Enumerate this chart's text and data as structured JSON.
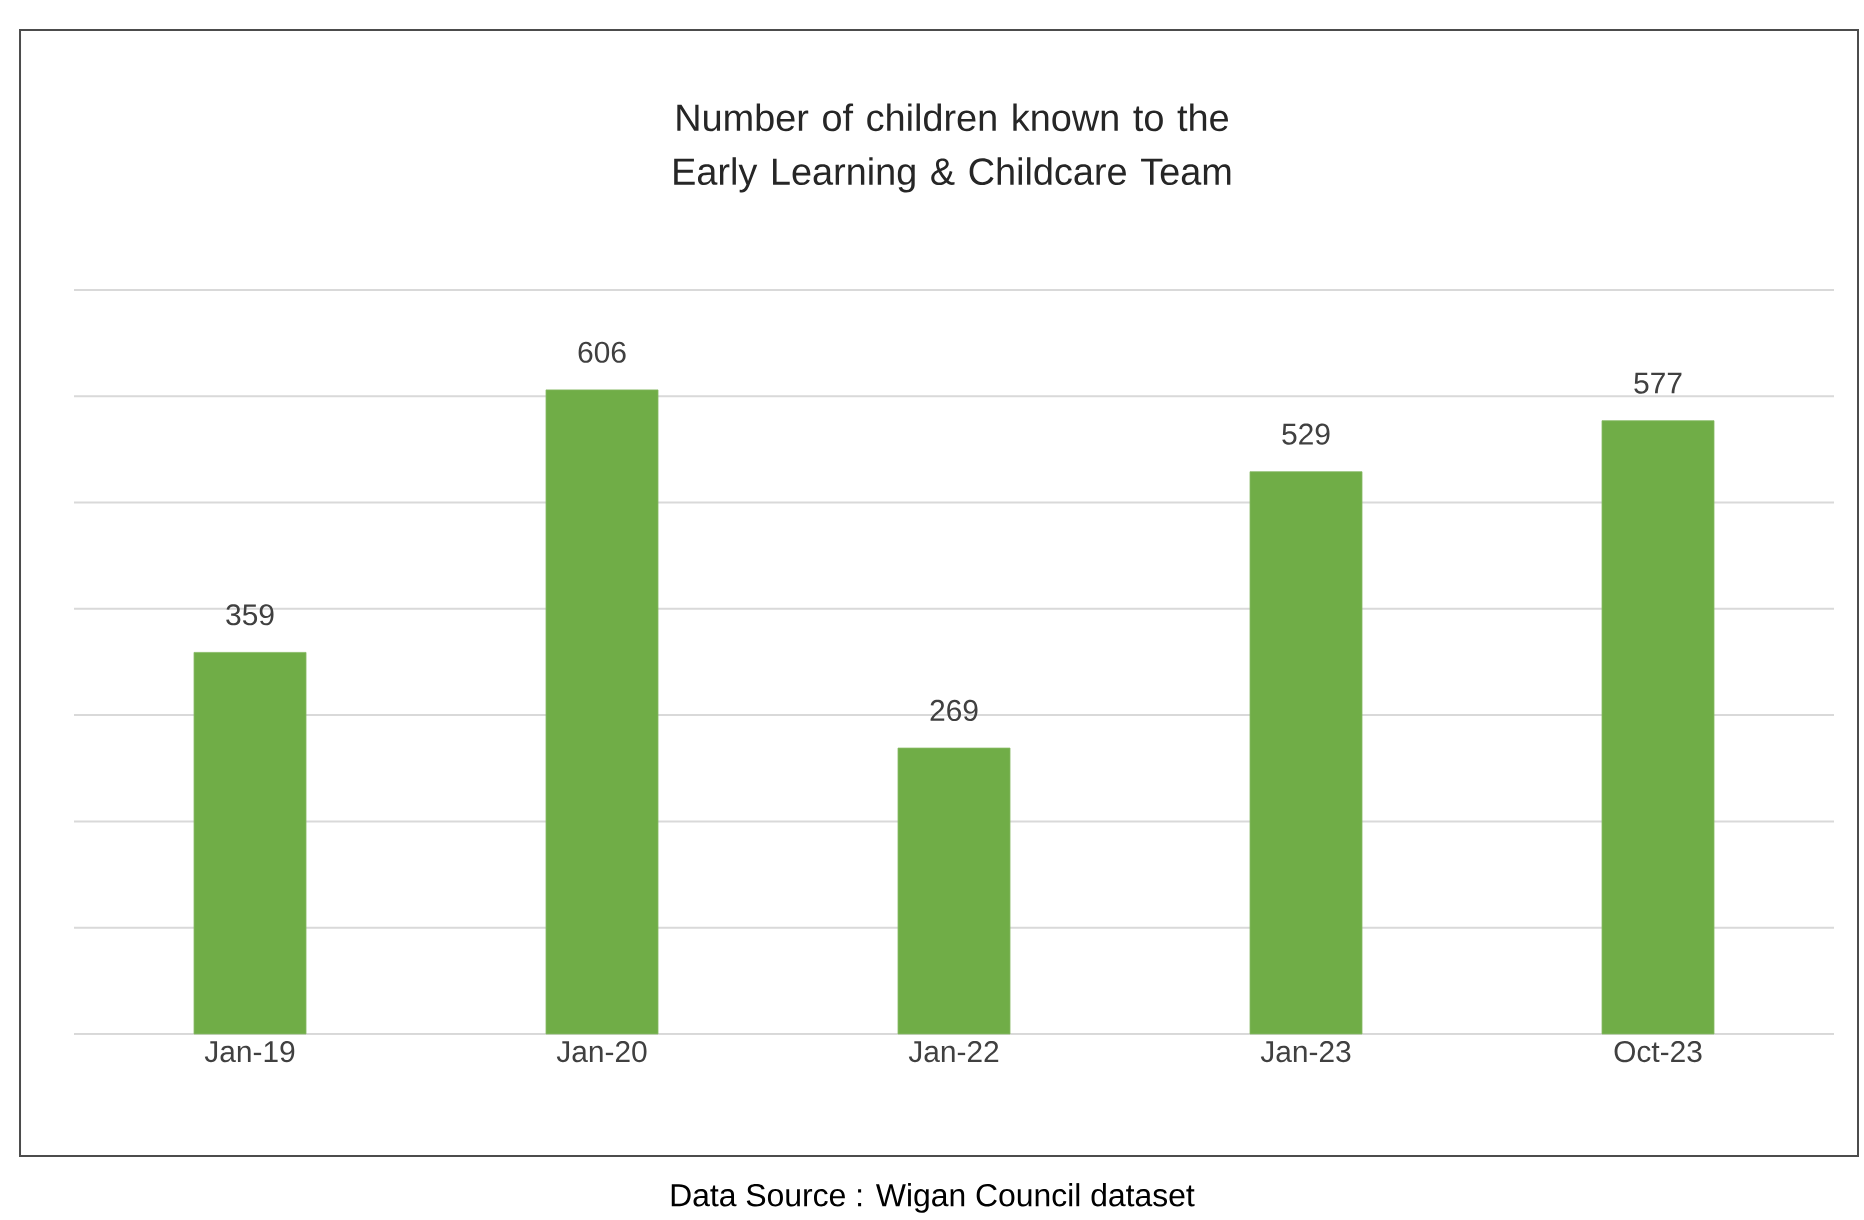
{
  "chart_data": {
    "type": "bar",
    "title": "Number of children known to the Early Learning & Childcare Team",
    "categories": [
      "Jan-19",
      "Jan-20",
      "Jan-22",
      "Jan-23",
      "Oct-23"
    ],
    "values": [
      359,
      606,
      269,
      529,
      577
    ],
    "color": "#70ad47",
    "ylim": [
      0,
      700
    ],
    "yticks": [
      {
        "value": 0,
        "label": null
      },
      {
        "value": 100,
        "label": null
      },
      {
        "value": 200,
        "label": null
      },
      {
        "value": 300,
        "label": null
      },
      {
        "value": 400,
        "label": null
      },
      {
        "value": 500,
        "label": null
      },
      {
        "value": 600,
        "label": null
      },
      {
        "value": 700,
        "label": null
      }
    ],
    "tick_labels": "x",
    "grid": "y",
    "data_labels": true,
    "annotations": [
      "Data Source : Wigan Council dataset"
    ]
  }
}
